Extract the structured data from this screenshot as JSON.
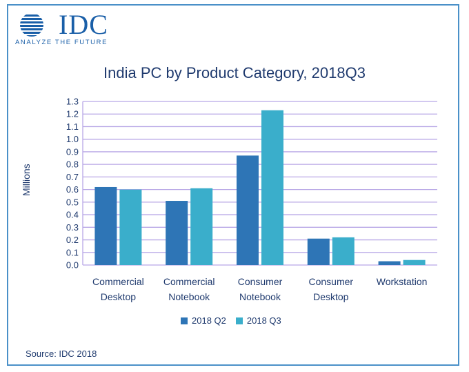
{
  "logo": {
    "word": "IDC",
    "tagline": "ANALYZE THE FUTURE"
  },
  "colors": {
    "q2": "#2e75b6",
    "q3": "#3aaecb",
    "grid": "#b8a7e6",
    "text": "#1f3a6e",
    "border": "#4a90c8"
  },
  "chart_data": {
    "type": "bar",
    "title": "India PC by Product Category, 2018Q3",
    "ylabel": "Millions",
    "xlabel": "",
    "ylim": [
      0,
      1.3
    ],
    "yticks": [
      "0.0",
      "0.1",
      "0.2",
      "0.3",
      "0.4",
      "0.5",
      "0.6",
      "0.7",
      "0.8",
      "0.9",
      "1.0",
      "1.1",
      "1.2",
      "1.3"
    ],
    "categories": [
      [
        "Commercial",
        "Desktop"
      ],
      [
        "Commercial",
        "Notebook"
      ],
      [
        "Consumer",
        "Notebook"
      ],
      [
        "Consumer",
        "Desktop"
      ],
      [
        "Workstation"
      ]
    ],
    "series": [
      {
        "name": "2018 Q2",
        "values": [
          0.62,
          0.51,
          0.87,
          0.21,
          0.03
        ]
      },
      {
        "name": "2018 Q3",
        "values": [
          0.6,
          0.61,
          1.23,
          0.22,
          0.04
        ]
      }
    ],
    "grid": true,
    "legend": "bottom"
  },
  "source": "Source: IDC 2018"
}
